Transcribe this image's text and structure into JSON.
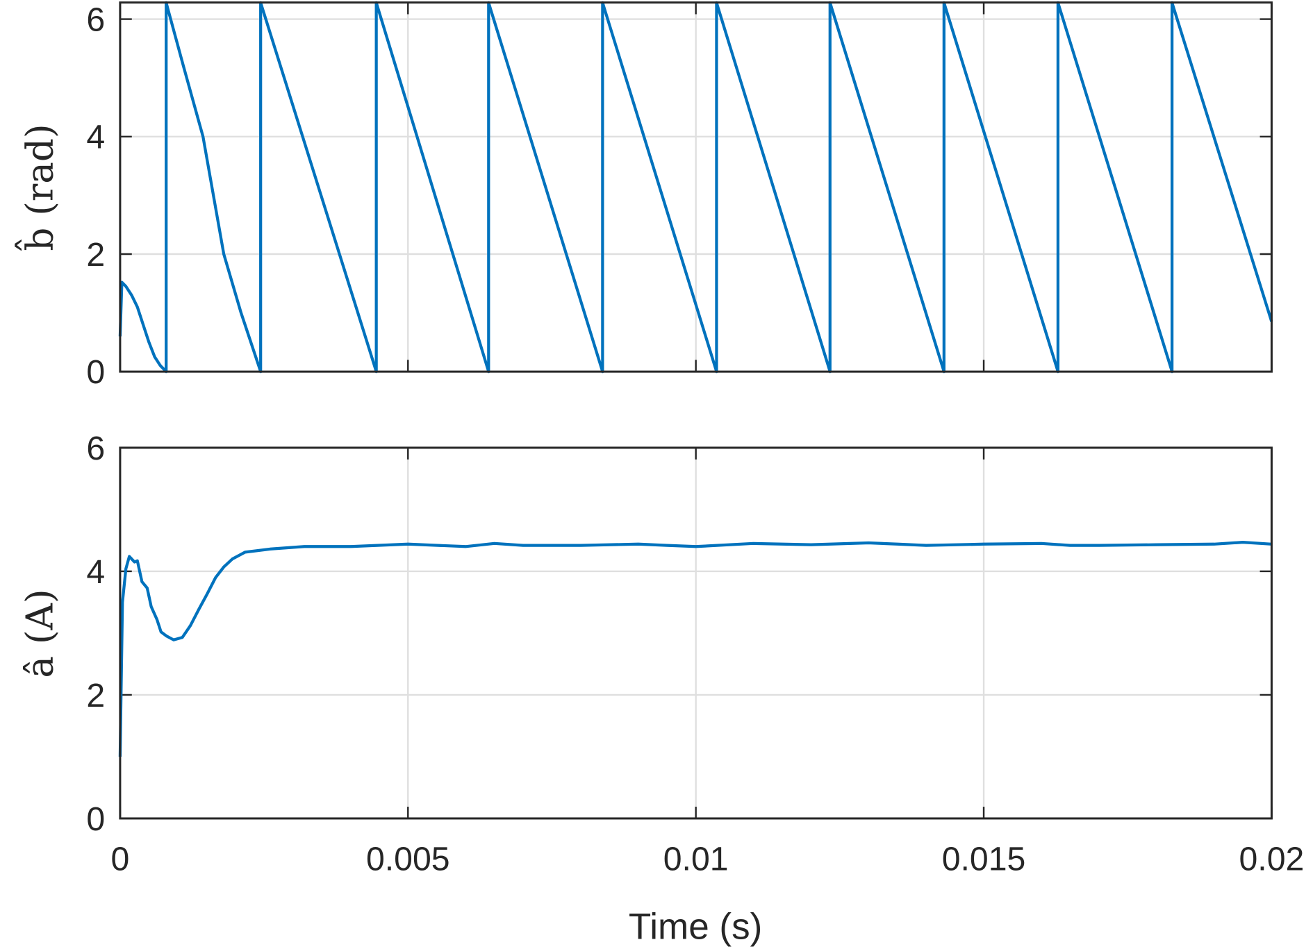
{
  "chart_data": [
    {
      "type": "line",
      "ylabel": "b̂ (rad)",
      "xlabel": "",
      "xlim": [
        0,
        0.02
      ],
      "ylim": [
        0,
        6.2832
      ],
      "yticks": [
        "0",
        "2",
        "4",
        "6"
      ],
      "ytick_values": [
        0,
        2,
        4,
        6
      ],
      "xtick_values": [
        0,
        0.005,
        0.01,
        0.015,
        0.02
      ],
      "grid": true,
      "color": "#0072BD",
      "series": [
        {
          "x": [
            0,
            3e-05,
            0.0001,
            0.0002,
            0.0003,
            0.0004,
            0.0005,
            0.0006,
            0.0007,
            0.0008,
            0.0008,
            0.0011,
            0.00144,
            0.0018,
            0.0021,
            0.00244,
            0.00244,
            0.00445,
            0.00445,
            0.0064,
            0.0064,
            0.00838,
            0.00838,
            0.01036,
            0.01036,
            0.01233,
            0.01233,
            0.01431,
            0.01431,
            0.01629,
            0.01629,
            0.01827,
            0.01827,
            0.02
          ],
          "y": [
            0.6,
            1.52,
            1.45,
            1.3,
            1.1,
            0.8,
            0.5,
            0.25,
            0.1,
            0.0,
            6.28,
            5.2,
            4.0,
            2.0,
            1.0,
            0.0,
            6.28,
            0.0,
            6.28,
            0.0,
            6.28,
            0.0,
            6.28,
            0.0,
            6.28,
            0.0,
            6.28,
            0.0,
            6.28,
            0.0,
            6.28,
            0.0,
            6.28,
            0.85
          ]
        }
      ]
    },
    {
      "type": "line",
      "ylabel": "â (A)",
      "xlabel": "Time (s)",
      "xlim": [
        0,
        0.02
      ],
      "ylim": [
        0,
        6
      ],
      "yticks": [
        "0",
        "2",
        "4",
        "6"
      ],
      "ytick_values": [
        0,
        2,
        4,
        6
      ],
      "xticks": [
        "0",
        "0.005",
        "0.01",
        "0.015",
        "0.02"
      ],
      "xtick_values": [
        0,
        0.005,
        0.01,
        0.015,
        0.02
      ],
      "grid": true,
      "color": "#0072BD",
      "series": [
        {
          "x": [
            0,
            4e-05,
            0.0001,
            0.00016,
            0.00025,
            0.0003,
            0.00038,
            0.00047,
            0.00054,
            0.00064,
            0.00071,
            0.00081,
            0.00093,
            0.00108,
            0.00122,
            0.00137,
            0.00151,
            0.00166,
            0.0018,
            0.00195,
            0.00217,
            0.0026,
            0.0032,
            0.004,
            0.005,
            0.006,
            0.0065,
            0.007,
            0.008,
            0.009,
            0.0095,
            0.01,
            0.011,
            0.012,
            0.013,
            0.0135,
            0.014,
            0.015,
            0.016,
            0.0165,
            0.017,
            0.018,
            0.019,
            0.0195,
            0.02
          ],
          "y": [
            1.0,
            3.5,
            4.04,
            4.24,
            4.15,
            4.17,
            3.83,
            3.73,
            3.43,
            3.22,
            3.02,
            2.95,
            2.89,
            2.93,
            3.12,
            3.39,
            3.63,
            3.9,
            4.07,
            4.2,
            4.31,
            4.36,
            4.4,
            4.4,
            4.44,
            4.4,
            4.45,
            4.42,
            4.42,
            4.44,
            4.42,
            4.4,
            4.45,
            4.43,
            4.46,
            4.44,
            4.42,
            4.44,
            4.45,
            4.42,
            4.42,
            4.43,
            4.44,
            4.47,
            4.44
          ]
        }
      ]
    }
  ]
}
